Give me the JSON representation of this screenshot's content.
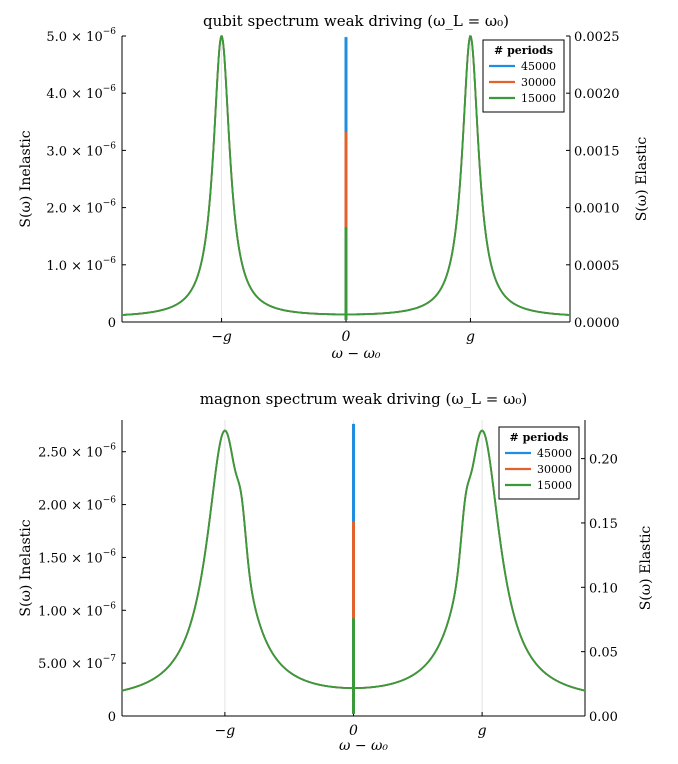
{
  "chart_data": [
    {
      "type": "line",
      "title": "qubit spectrum weak driving (ω_L = ω₀)",
      "xlabel": "ω − ω₀",
      "ylabel_left": "S(ω) Inelastic",
      "ylabel_right": "S(ω) Elastic",
      "x_ticks": [
        "−g",
        "0",
        "g"
      ],
      "x_tick_values": [
        -1,
        0,
        1
      ],
      "xlim": [
        -1.8,
        1.8
      ],
      "ylim_left": [
        0,
        5e-06
      ],
      "ylim_right": [
        0,
        0.0025
      ],
      "y_ticks_left": [
        {
          "mant": "0",
          "exp": ""
        },
        {
          "mant": "1.0 × 10",
          "exp": "−6"
        },
        {
          "mant": "2.0 × 10",
          "exp": "−6"
        },
        {
          "mant": "3.0 × 10",
          "exp": "−6"
        },
        {
          "mant": "4.0 × 10",
          "exp": "−6"
        },
        {
          "mant": "5.0 × 10",
          "exp": "−6"
        }
      ],
      "y_ticks_right": [
        "0.0000",
        "0.0005",
        "0.0010",
        "0.0015",
        "0.0020",
        "0.0025"
      ],
      "y_tick_values_right": [
        0,
        0.0005,
        0.001,
        0.0015,
        0.002,
        0.0025
      ],
      "legend_title": "# periods",
      "legend_position": "top-right",
      "grid": true,
      "inelastic": {
        "peak_x": 1,
        "peak": 5e-06,
        "hwhm": 0.08,
        "baseline": 7e-08,
        "shoulder": 0
      },
      "series": [
        {
          "name": "45000",
          "color": "#1f8ee0",
          "elastic_peak": 0.00249
        },
        {
          "name": "30000",
          "color": "#e2622d",
          "elastic_peak": 0.00166
        },
        {
          "name": "15000",
          "color": "#3a9a3a",
          "elastic_peak": 0.00083
        }
      ]
    },
    {
      "type": "line",
      "title": "magnon spectrum weak driving (ω_L = ω₀)",
      "xlabel": "ω − ω₀",
      "ylabel_left": "S(ω) Inelastic",
      "ylabel_right": "S(ω) Elastic",
      "x_ticks": [
        "−g",
        "0",
        "g"
      ],
      "x_tick_values": [
        -1,
        0,
        1
      ],
      "xlim": [
        -1.8,
        1.8
      ],
      "ylim_left": [
        0,
        2.8e-06
      ],
      "ylim_right": [
        0,
        0.23
      ],
      "y_ticks_left": [
        {
          "mant": "0",
          "exp": ""
        },
        {
          "mant": "5.00 × 10",
          "exp": "−7"
        },
        {
          "mant": "1.00 × 10",
          "exp": "−6"
        },
        {
          "mant": "1.50 × 10",
          "exp": "−6"
        },
        {
          "mant": "2.00 × 10",
          "exp": "−6"
        },
        {
          "mant": "2.50 × 10",
          "exp": "−6"
        }
      ],
      "y_tick_values_left": [
        0,
        5e-07,
        1e-06,
        1.5e-06,
        2e-06,
        2.5e-06
      ],
      "y_ticks_right": [
        "0.00",
        "0.05",
        "0.10",
        "0.15",
        "0.20"
      ],
      "y_tick_values_right": [
        0,
        0.05,
        0.1,
        0.15,
        0.2
      ],
      "legend_title": "# periods",
      "legend_position": "top-right",
      "grid": true,
      "inelastic": {
        "peak_x": 1,
        "peak": 2.7e-06,
        "hwhm": 0.17,
        "baseline": 1.2e-07,
        "shoulder": 0.35
      },
      "series": [
        {
          "name": "45000",
          "color": "#1f8ee0",
          "elastic_peak": 0.227
        },
        {
          "name": "30000",
          "color": "#e2622d",
          "elastic_peak": 0.151
        },
        {
          "name": "15000",
          "color": "#3a9a3a",
          "elastic_peak": 0.076
        }
      ]
    }
  ]
}
